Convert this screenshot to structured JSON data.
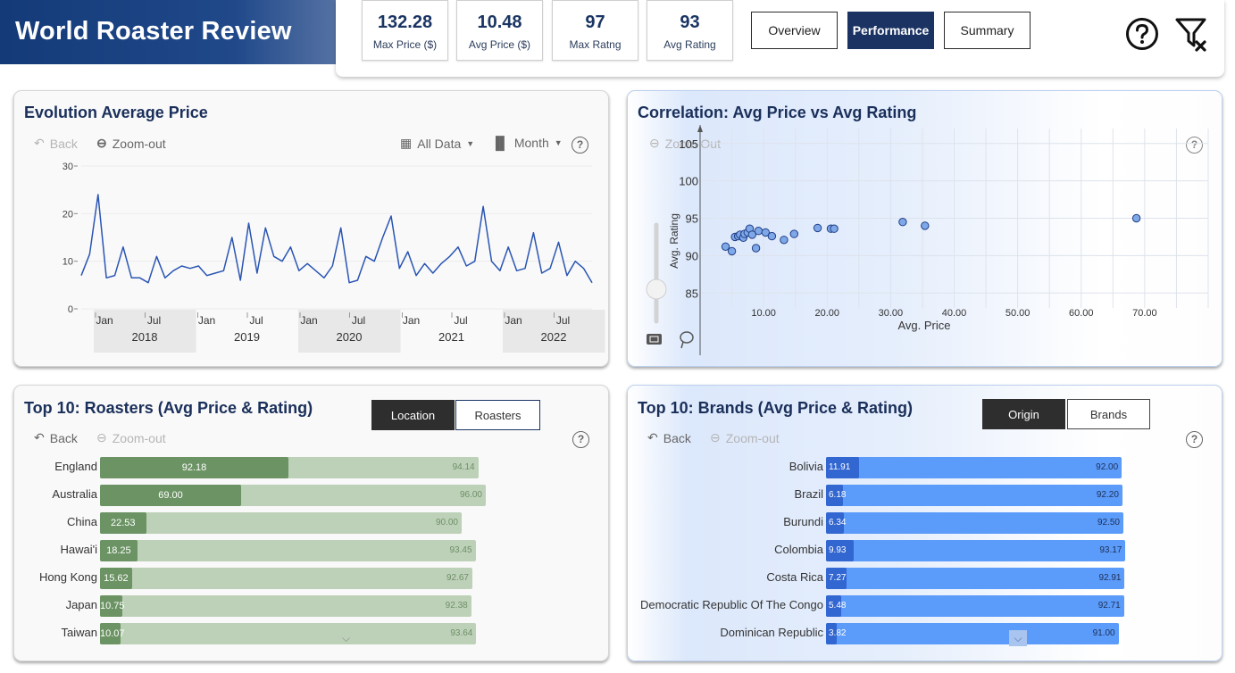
{
  "app": {
    "title": "World Roaster Review"
  },
  "kpis": [
    {
      "value": "132.28",
      "label": "Max Price ($)"
    },
    {
      "value": "10.48",
      "label": "Avg Price ($)"
    },
    {
      "value": "97",
      "label": "Max Ratng"
    },
    {
      "value": "93",
      "label": "Avg Rating"
    }
  ],
  "nav": {
    "overview": "Overview",
    "performance": "Performance",
    "summary": "Summary",
    "active": "Performance"
  },
  "icons": {
    "help": "help-circle-icon",
    "clear_filters": "filter-clear-icon"
  },
  "colors": {
    "brand": "#1b3363",
    "line": "#2a55b3",
    "green_dark": "#6b9363",
    "green_light": "#bdd1b8",
    "blue_dark": "#3266d0",
    "blue_light": "#5b9bfa"
  },
  "evolution": {
    "title": "Evolution Average Price",
    "back": "Back",
    "zoom_out": "Zoom-out",
    "all_data": "All Data",
    "month": "Month",
    "help": "?",
    "months": [
      "Jan",
      "Jul",
      "Jan",
      "Jul",
      "Jan",
      "Jul",
      "Jan",
      "Jul",
      "Jan",
      "Jul"
    ],
    "years": [
      "2018",
      "2019",
      "2020",
      "2021",
      "2022"
    ]
  },
  "correlation": {
    "title": "Correlation: Avg Price vs Avg Rating",
    "zoom_out": "Zoom Out",
    "help": "?"
  },
  "roasters": {
    "title": "Top 10: Roasters (Avg Price & Rating)",
    "toggle_location": "Location",
    "toggle_roasters": "Roasters",
    "back": "Back",
    "zoom_out": "Zoom-out",
    "help": "?",
    "rows": [
      {
        "label": "England",
        "price": "92.18",
        "rating": "94.14"
      },
      {
        "label": "Australia",
        "price": "69.00",
        "rating": "96.00"
      },
      {
        "label": "China",
        "price": "22.53",
        "rating": "90.00"
      },
      {
        "label": "Hawai'i",
        "price": "18.25",
        "rating": "93.45"
      },
      {
        "label": "Hong Kong",
        "price": "15.62",
        "rating": "92.67"
      },
      {
        "label": "Japan",
        "price": "10.75",
        "rating": "92.38"
      },
      {
        "label": "Taiwan",
        "price": "10.07",
        "rating": "93.64"
      }
    ]
  },
  "brands": {
    "title": "Top 10: Brands (Avg Price & Rating)",
    "toggle_origin": "Origin",
    "toggle_brands": "Brands",
    "back": "Back",
    "zoom_out": "Zoom-out",
    "help": "?",
    "rows": [
      {
        "label": "Bolivia",
        "price": "11.91",
        "rating": "92.00"
      },
      {
        "label": "Brazil",
        "price": "6.18",
        "rating": "92.20"
      },
      {
        "label": "Burundi",
        "price": "6.34",
        "rating": "92.50"
      },
      {
        "label": "Colombia",
        "price": "9.93",
        "rating": "93.17"
      },
      {
        "label": "Costa Rica",
        "price": "7.27",
        "rating": "92.91"
      },
      {
        "label": "Democratic Republic Of The Congo",
        "price": "5.48",
        "rating": "92.71"
      },
      {
        "label": "Dominican Republic",
        "price": "3.82",
        "rating": "91.00"
      }
    ]
  },
  "chart_data": [
    {
      "type": "line",
      "title": "Evolution Average Price",
      "ylim": [
        0,
        30
      ],
      "yticks": [
        0,
        10,
        20,
        30
      ],
      "x_start": "2017-12",
      "x_end": "2022-12",
      "series": [
        {
          "values": [
            7,
            11.5,
            24,
            6.5,
            7,
            13,
            6.5,
            6.5,
            5.5,
            11,
            6.5,
            8,
            9,
            8.5,
            9,
            7,
            7.5,
            8,
            15,
            6,
            18,
            7.5,
            17,
            11,
            10,
            13,
            8,
            9.5,
            8,
            6.5,
            9,
            17,
            5.5,
            6,
            11,
            10,
            15,
            19.5,
            8.5,
            12,
            7,
            9.5,
            7.5,
            9.5,
            11,
            13,
            9,
            10,
            21.5,
            10,
            8,
            13,
            8,
            8.5,
            16,
            7.5,
            8.5,
            14,
            7,
            10,
            8.5,
            5.5
          ]
        }
      ]
    },
    {
      "type": "scatter",
      "title": "Correlation: Avg Price vs Avg Rating",
      "xlabel": "Avg. Price",
      "ylabel": "Avg. Rating",
      "xlim": [
        0,
        80
      ],
      "ylim": [
        83,
        107
      ],
      "xticks": [
        "10.00",
        "20.00",
        "30.00",
        "40.00",
        "50.00",
        "60.00",
        "70.00"
      ],
      "yticks": [
        "85",
        "90",
        "95",
        "100",
        "105"
      ],
      "points": [
        [
          4,
          91.2
        ],
        [
          5,
          90.6
        ],
        [
          5.5,
          92.5
        ],
        [
          6,
          92.6
        ],
        [
          6.3,
          92.8
        ],
        [
          6.8,
          92.4
        ],
        [
          7,
          92.9
        ],
        [
          7.5,
          93.1
        ],
        [
          7.8,
          93.6
        ],
        [
          8.2,
          92.8
        ],
        [
          8.8,
          91
        ],
        [
          9.2,
          93.3
        ],
        [
          10.3,
          93.1
        ],
        [
          11.3,
          92.6
        ],
        [
          13.2,
          92.1
        ],
        [
          14.8,
          92.9
        ],
        [
          18.5,
          93.7
        ],
        [
          20.6,
          93.6
        ],
        [
          21.1,
          93.6
        ],
        [
          31.9,
          94.5
        ],
        [
          35.4,
          94
        ],
        [
          68.7,
          95
        ]
      ]
    },
    {
      "type": "bar",
      "title": "Top 10: Roasters (Avg Price & Rating)",
      "categories": [
        "England",
        "Australia",
        "China",
        "Hawai'i",
        "Hong Kong",
        "Japan",
        "Taiwan"
      ],
      "series": [
        {
          "values": [
            92.18,
            69.0,
            22.53,
            18.25,
            15.62,
            10.75,
            10.07
          ]
        },
        {
          "values": [
            94.14,
            96.0,
            90.0,
            93.45,
            92.67,
            92.38,
            93.64
          ]
        }
      ]
    },
    {
      "type": "bar",
      "title": "Top 10: Brands (Avg Price & Rating)",
      "categories": [
        "Bolivia",
        "Brazil",
        "Burundi",
        "Colombia",
        "Costa Rica",
        "Democratic Republic Of The Congo",
        "Dominican Republic"
      ],
      "series": [
        {
          "values": [
            11.91,
            6.18,
            6.34,
            9.93,
            7.27,
            5.48,
            3.82
          ]
        },
        {
          "values": [
            92.0,
            92.2,
            92.5,
            93.17,
            92.91,
            92.71,
            91.0
          ]
        }
      ]
    }
  ]
}
